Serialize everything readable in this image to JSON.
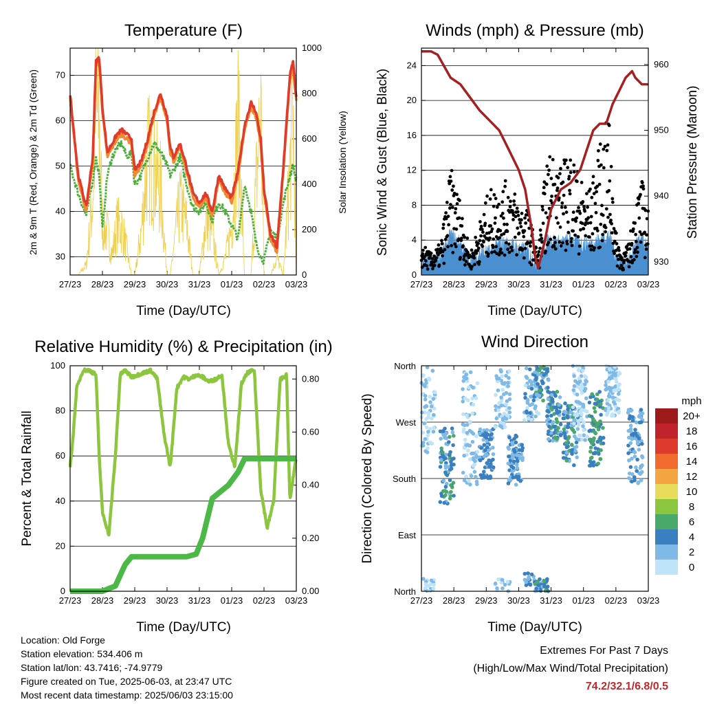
{
  "panels": {
    "temperature": {
      "title": "Temperature (F)",
      "ylabel_left": "2m & 9m T (Red, Orange) & 2m Td (Green)",
      "ylabel_right": "Solar Insolation (Yellow)",
      "xlabel": "Time (Day/UTC)"
    },
    "winds": {
      "title": "Winds (mph) & Pressure (mb)",
      "ylabel_left": "Sonic Wind & Gust (Blue, Black)",
      "ylabel_right": "Station Pressure (Maroon)",
      "xlabel": "Time (Day/UTC)"
    },
    "humidity": {
      "title": "Relative Humidity (%) & Precipitation (in)",
      "ylabel_left": "Percent & Total Rainfall",
      "xlabel": "Time (Day/UTC)"
    },
    "direction": {
      "title": "Wind Direction",
      "ylabel_left": "Direction (Colored By Speed)",
      "xlabel": "Time (Day/UTC)",
      "legend_title": "mph"
    }
  },
  "info": {
    "location": "Location: Old Forge",
    "elevation": "Station elevation: 534.406 m",
    "latlon": "Station lat/lon: 43.7416; -74.9779",
    "created": "Figure created on Tue, 2025-06-03, at 23:47 UTC",
    "latest": "Most recent data timestamp: 2025/06/03 23:15:00"
  },
  "extremes": {
    "line1": "Extremes For Past 7 Days",
    "line2": "(High/Low/Max Wind/Total Precipitation)",
    "values": "74.2/32.1/6.8/0.5"
  },
  "chart_data": [
    {
      "type": "line",
      "title": "Temperature (F)",
      "xlabel": "Time (Day/UTC)",
      "ylabel": "2m & 9m T (Red, Orange) & 2m Td (Green)",
      "y2label": "Solar Insolation (Yellow)",
      "x_ticks": [
        "27/23",
        "28/23",
        "29/23",
        "30/23",
        "31/23",
        "01/23",
        "02/23",
        "03/23"
      ],
      "ylim": [
        26,
        76
      ],
      "y_ticks": [
        30,
        40,
        50,
        60,
        70
      ],
      "y2lim": [
        0,
        1000
      ],
      "y2_ticks": [
        0,
        200,
        400,
        600,
        800,
        1000
      ],
      "x": [
        0,
        0.25,
        0.5,
        0.7,
        0.8,
        0.9,
        1.0,
        1.15,
        1.3,
        1.45,
        1.6,
        1.75,
        1.9,
        2.0,
        2.2,
        2.4,
        2.6,
        2.8,
        3.0,
        3.1,
        3.2,
        3.4,
        3.6,
        3.8,
        4.0,
        4.2,
        4.4,
        4.6,
        4.8,
        5.0,
        5.2,
        5.4,
        5.6,
        5.75,
        5.9,
        6.0,
        6.2,
        6.4,
        6.6,
        6.8,
        6.9,
        7.0
      ],
      "series": [
        {
          "name": "2m T",
          "color": "#e03a2a",
          "values": [
            66,
            48,
            41,
            52,
            73,
            74,
            63,
            53,
            55,
            57,
            58,
            57,
            56,
            49,
            51,
            56,
            62,
            66,
            61,
            54,
            52,
            55,
            50,
            44,
            42,
            44,
            40,
            48,
            45,
            43,
            49,
            59,
            64,
            62,
            56,
            45,
            35,
            32,
            50,
            70,
            73,
            65
          ]
        },
        {
          "name": "9m T",
          "color": "#f08a30",
          "values": [
            65,
            47,
            40,
            51,
            72,
            73,
            62,
            52,
            54,
            56,
            57,
            56,
            55,
            48,
            50,
            55,
            61,
            65,
            60,
            53,
            51,
            54,
            49,
            43,
            41,
            43,
            39,
            47,
            44,
            42,
            48,
            58,
            63,
            61,
            55,
            44,
            34,
            31,
            49,
            69,
            72,
            64
          ]
        },
        {
          "name": "2m Td",
          "color": "#4caf3a",
          "values": [
            50,
            44,
            39,
            47,
            52,
            48,
            36,
            48,
            52,
            54,
            55,
            52,
            53,
            46,
            48,
            52,
            55,
            53,
            50,
            48,
            49,
            52,
            46,
            41,
            40,
            42,
            38,
            42,
            40,
            37,
            34,
            46,
            40,
            33,
            30,
            29,
            36,
            34,
            42,
            48,
            50,
            47
          ]
        },
        {
          "name": "Solar Insolation",
          "color": "#f0d050",
          "axis": "right",
          "values": [
            0,
            0,
            60,
            450,
            980,
            900,
            300,
            250,
            120,
            300,
            280,
            150,
            0,
            0,
            250,
            700,
            620,
            500,
            0,
            0,
            150,
            420,
            300,
            0,
            0,
            320,
            250,
            0,
            100,
            280,
            900,
            0,
            0,
            500,
            980,
            0,
            0,
            100,
            0,
            600,
            980,
            0
          ]
        }
      ]
    },
    {
      "type": "scatter",
      "title": "Winds (mph) & Pressure (mb)",
      "xlabel": "Time (Day/UTC)",
      "ylabel": "Sonic Wind & Gust (Blue, Black)",
      "y2label": "Station Pressure (Maroon)",
      "x_ticks": [
        "27/23",
        "28/23",
        "29/23",
        "30/23",
        "31/23",
        "01/23",
        "02/23",
        "03/23"
      ],
      "ylim": [
        0,
        26
      ],
      "y_ticks": [
        0,
        4,
        8,
        12,
        16,
        20,
        24
      ],
      "y2lim": [
        928,
        962.5
      ],
      "y2_ticks": [
        930,
        940,
        950,
        960
      ],
      "series": [
        {
          "name": "Station Pressure",
          "type": "line",
          "color": "#a52020",
          "axis": "right",
          "x": [
            0,
            0.3,
            0.5,
            0.9,
            1.2,
            1.5,
            1.8,
            2.1,
            2.4,
            2.6,
            2.8,
            3.0,
            3.2,
            3.4,
            3.5,
            3.6,
            3.8,
            4.0,
            4.3,
            4.6,
            4.9,
            5.1,
            5.3,
            5.5,
            5.7,
            5.9,
            6.1,
            6.3,
            6.5,
            6.6,
            6.8,
            7.0
          ],
          "values": [
            962,
            962,
            961.5,
            958,
            957,
            955,
            953,
            951.5,
            950,
            948,
            946,
            944,
            941,
            935,
            931,
            929,
            933,
            938,
            941,
            942,
            944,
            947,
            950,
            951,
            951,
            954,
            956,
            958,
            959,
            958,
            957,
            957
          ]
        },
        {
          "name": "Sonic Wind",
          "color": "#4a90d0",
          "x": [
            0,
            0.3,
            0.6,
            0.9,
            1.2,
            1.5,
            1.8,
            2.1,
            2.4,
            2.7,
            3.0,
            3.3,
            3.6,
            3.8,
            4.0,
            4.3,
            4.6,
            4.9,
            5.2,
            5.5,
            5.8,
            6.0,
            6.2,
            6.4,
            6.6,
            6.8,
            7.0
          ],
          "values": [
            1,
            1,
            1.5,
            4,
            3,
            1,
            2,
            2,
            3,
            3,
            2.5,
            2,
            0.5,
            3,
            3.5,
            3,
            3.5,
            3,
            3,
            3.5,
            4,
            1.5,
            1,
            1,
            3,
            3.5,
            2
          ]
        },
        {
          "name": "Gust",
          "color": "#000000",
          "x": [
            0,
            0.3,
            0.6,
            0.9,
            1.2,
            1.5,
            1.8,
            2.1,
            2.4,
            2.7,
            3.0,
            3.3,
            3.6,
            3.8,
            4.0,
            4.3,
            4.6,
            4.9,
            5.2,
            5.5,
            5.8,
            6.0,
            6.2,
            6.4,
            6.6,
            6.8,
            7.0
          ],
          "values": [
            3,
            2,
            3,
            10,
            7,
            2,
            5,
            8,
            8,
            9,
            7,
            6,
            2,
            9,
            12,
            10,
            12,
            9,
            8,
            12,
            15,
            4,
            2,
            3,
            7,
            9,
            6
          ]
        }
      ]
    },
    {
      "type": "line",
      "title": "Relative Humidity (%) & Precipitation (in)",
      "xlabel": "Time (Day/UTC)",
      "ylabel": "Percent & Total Rainfall",
      "x_ticks": [
        "27/23",
        "28/23",
        "29/23",
        "30/23",
        "31/23",
        "01/23",
        "02/23",
        "03/23"
      ],
      "ylim": [
        0,
        100
      ],
      "y_ticks": [
        0,
        20,
        40,
        60,
        80,
        100
      ],
      "y2lim": [
        0,
        0.85
      ],
      "y2_ticks": [
        "0.00",
        "0.20",
        "0.40",
        "0.60",
        "0.80"
      ],
      "series": [
        {
          "name": "Relative Humidity",
          "color": "#8cc63f",
          "axis": "left",
          "x": [
            0,
            0.1,
            0.2,
            0.4,
            0.6,
            0.8,
            0.9,
            1.0,
            1.1,
            1.2,
            1.4,
            1.55,
            1.7,
            1.9,
            2.1,
            2.3,
            2.5,
            2.7,
            2.9,
            3.1,
            3.3,
            3.5,
            3.7,
            3.9,
            4.1,
            4.3,
            4.5,
            4.7,
            4.9,
            5.1,
            5.3,
            5.5,
            5.7,
            5.9,
            6.1,
            6.3,
            6.5,
            6.7,
            6.8,
            7.0
          ],
          "values": [
            55,
            70,
            90,
            98,
            98,
            96,
            60,
            35,
            30,
            25,
            60,
            96,
            98,
            95,
            96,
            97,
            98,
            94,
            70,
            55,
            90,
            95,
            94,
            96,
            95,
            93,
            94,
            96,
            65,
            55,
            92,
            97,
            98,
            45,
            28,
            40,
            94,
            96,
            40,
            60
          ]
        },
        {
          "name": "Total Precipitation",
          "color": "#4cb848",
          "axis": "right",
          "x": [
            0,
            0.5,
            1.0,
            1.4,
            1.7,
            1.9,
            2.3,
            2.8,
            3.3,
            3.6,
            3.9,
            4.1,
            4.4,
            4.6,
            4.9,
            5.2,
            5.4,
            5.7,
            6.0,
            6.5,
            7.0
          ],
          "values": [
            0,
            0,
            0,
            0.02,
            0.1,
            0.13,
            0.13,
            0.13,
            0.13,
            0.13,
            0.14,
            0.2,
            0.35,
            0.37,
            0.4,
            0.45,
            0.5,
            0.5,
            0.5,
            0.5,
            0.5
          ]
        }
      ]
    },
    {
      "type": "scatter",
      "title": "Wind Direction",
      "xlabel": "Time (Day/UTC)",
      "ylabel": "Direction (Colored By Speed)",
      "x_ticks": [
        "27/23",
        "28/23",
        "29/23",
        "30/23",
        "31/23",
        "01/23",
        "02/23",
        "03/23"
      ],
      "y_ticks": [
        "North",
        "East",
        "South",
        "West",
        "North"
      ],
      "ylim": [
        0,
        360
      ],
      "legend": {
        "title": "mph",
        "labels": [
          "20+",
          "18",
          "16",
          "14",
          "12",
          "10",
          "8",
          "6",
          "4",
          "2",
          "0"
        ],
        "colors": [
          "#9c1a1a",
          "#c0232a",
          "#de3b2c",
          "#f06b2d",
          "#f5a442",
          "#e8dd5a",
          "#8cc63f",
          "#4aa86a",
          "#3a7fbf",
          "#7fb9e6",
          "#bfe3f7"
        ]
      },
      "clusters": [
        {
          "day": 0.2,
          "dir": 300,
          "spread_dir": 80,
          "speed": 1
        },
        {
          "day": 0.8,
          "dir": 200,
          "spread_dir": 60,
          "speed": 4
        },
        {
          "day": 1.5,
          "dir": 260,
          "spread_dir": 90,
          "speed": 1
        },
        {
          "day": 2.0,
          "dir": 220,
          "spread_dir": 40,
          "speed": 3
        },
        {
          "day": 2.5,
          "dir": 320,
          "spread_dir": 60,
          "speed": 1
        },
        {
          "day": 2.9,
          "dir": 210,
          "spread_dir": 40,
          "speed": 3
        },
        {
          "day": 3.4,
          "dir": 330,
          "spread_dir": 60,
          "speed": 2
        },
        {
          "day": 3.7,
          "dir": 340,
          "spread_dir": 40,
          "speed": 4
        },
        {
          "day": 4.1,
          "dir": 280,
          "spread_dir": 40,
          "speed": 4
        },
        {
          "day": 4.6,
          "dir": 250,
          "spread_dir": 50,
          "speed": 4
        },
        {
          "day": 4.9,
          "dir": 300,
          "spread_dir": 60,
          "speed": 1
        },
        {
          "day": 5.4,
          "dir": 260,
          "spread_dir": 60,
          "speed": 5
        },
        {
          "day": 5.9,
          "dir": 320,
          "spread_dir": 40,
          "speed": 1
        },
        {
          "day": 6.6,
          "dir": 230,
          "spread_dir": 60,
          "speed": 3
        }
      ]
    }
  ]
}
